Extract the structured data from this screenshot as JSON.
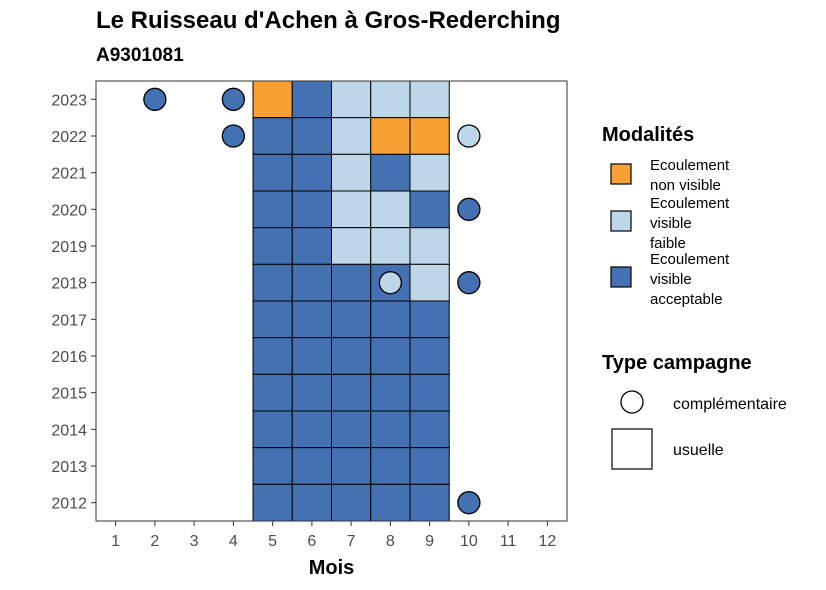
{
  "chart_data": {
    "type": "heatmap",
    "title": "Le Ruisseau d'Achen à Gros-Rederching",
    "subtitle": "A9301081",
    "xlabel": "Mois",
    "ylabel": "",
    "x_ticks": [
      "1",
      "2",
      "3",
      "4",
      "5",
      "6",
      "7",
      "8",
      "9",
      "10",
      "11",
      "12"
    ],
    "y_ticks": [
      "2012",
      "2013",
      "2014",
      "2015",
      "2016",
      "2017",
      "2018",
      "2019",
      "2020",
      "2021",
      "2022",
      "2023"
    ],
    "xlim": [
      0.5,
      12.5
    ],
    "ylim": [
      2011.5,
      2023.5
    ],
    "grid": false,
    "legend_position": "right",
    "categories": {
      "nv": {
        "label": "Ecoulement non visible",
        "color": "#f7a135"
      },
      "vf": {
        "label": "Ecoulement visible faible",
        "color": "#bed7e8"
      },
      "va": {
        "label": "Ecoulement visible acceptable",
        "color": "#4471b2"
      }
    },
    "legend_modalites": {
      "title": "Modalités",
      "items": [
        {
          "key": "nv",
          "lines": [
            "Ecoulement",
            "non visible"
          ]
        },
        {
          "key": "vf",
          "lines": [
            "Ecoulement",
            "visible",
            "faible"
          ]
        },
        {
          "key": "va",
          "lines": [
            "Ecoulement",
            "visible",
            "acceptable"
          ]
        }
      ]
    },
    "legend_type": {
      "title": "Type campagne",
      "items": [
        {
          "shape": "circle",
          "label": "complémentaire"
        },
        {
          "shape": "square",
          "label": "usuelle"
        }
      ]
    },
    "points": [
      {
        "year": 2023,
        "month": 2,
        "cat": "va",
        "type": "complementaire"
      },
      {
        "year": 2023,
        "month": 4,
        "cat": "va",
        "type": "complementaire"
      },
      {
        "year": 2023,
        "month": 5,
        "cat": "nv",
        "type": "usuelle"
      },
      {
        "year": 2023,
        "month": 6,
        "cat": "va",
        "type": "usuelle"
      },
      {
        "year": 2023,
        "month": 7,
        "cat": "vf",
        "type": "usuelle"
      },
      {
        "year": 2023,
        "month": 8,
        "cat": "vf",
        "type": "usuelle"
      },
      {
        "year": 2023,
        "month": 9,
        "cat": "vf",
        "type": "usuelle"
      },
      {
        "year": 2022,
        "month": 4,
        "cat": "va",
        "type": "complementaire"
      },
      {
        "year": 2022,
        "month": 5,
        "cat": "va",
        "type": "usuelle"
      },
      {
        "year": 2022,
        "month": 6,
        "cat": "va",
        "type": "usuelle"
      },
      {
        "year": 2022,
        "month": 7,
        "cat": "vf",
        "type": "usuelle"
      },
      {
        "year": 2022,
        "month": 8,
        "cat": "nv",
        "type": "usuelle"
      },
      {
        "year": 2022,
        "month": 9,
        "cat": "nv",
        "type": "usuelle"
      },
      {
        "year": 2022,
        "month": 10,
        "cat": "vf",
        "type": "complementaire"
      },
      {
        "year": 2021,
        "month": 5,
        "cat": "va",
        "type": "usuelle"
      },
      {
        "year": 2021,
        "month": 6,
        "cat": "va",
        "type": "usuelle"
      },
      {
        "year": 2021,
        "month": 7,
        "cat": "vf",
        "type": "usuelle"
      },
      {
        "year": 2021,
        "month": 8,
        "cat": "va",
        "type": "usuelle"
      },
      {
        "year": 2021,
        "month": 9,
        "cat": "vf",
        "type": "usuelle"
      },
      {
        "year": 2020,
        "month": 5,
        "cat": "va",
        "type": "usuelle"
      },
      {
        "year": 2020,
        "month": 6,
        "cat": "va",
        "type": "usuelle"
      },
      {
        "year": 2020,
        "month": 7,
        "cat": "vf",
        "type": "usuelle"
      },
      {
        "year": 2020,
        "month": 8,
        "cat": "vf",
        "type": "usuelle"
      },
      {
        "year": 2020,
        "month": 9,
        "cat": "va",
        "type": "usuelle"
      },
      {
        "year": 2020,
        "month": 10,
        "cat": "va",
        "type": "complementaire"
      },
      {
        "year": 2019,
        "month": 5,
        "cat": "va",
        "type": "usuelle"
      },
      {
        "year": 2019,
        "month": 6,
        "cat": "va",
        "type": "usuelle"
      },
      {
        "year": 2019,
        "month": 7,
        "cat": "vf",
        "type": "usuelle"
      },
      {
        "year": 2019,
        "month": 8,
        "cat": "vf",
        "type": "usuelle"
      },
      {
        "year": 2019,
        "month": 9,
        "cat": "vf",
        "type": "usuelle"
      },
      {
        "year": 2018,
        "month": 5,
        "cat": "va",
        "type": "usuelle"
      },
      {
        "year": 2018,
        "month": 6,
        "cat": "va",
        "type": "usuelle"
      },
      {
        "year": 2018,
        "month": 7,
        "cat": "va",
        "type": "usuelle"
      },
      {
        "year": 2018,
        "month": 8,
        "cat": "va",
        "type": "usuelle"
      },
      {
        "year": 2018,
        "month": 8,
        "cat": "vf",
        "type": "complementaire"
      },
      {
        "year": 2018,
        "month": 9,
        "cat": "vf",
        "type": "usuelle"
      },
      {
        "year": 2018,
        "month": 10,
        "cat": "va",
        "type": "complementaire"
      },
      {
        "year": 2017,
        "month": 5,
        "cat": "va",
        "type": "usuelle"
      },
      {
        "year": 2017,
        "month": 6,
        "cat": "va",
        "type": "usuelle"
      },
      {
        "year": 2017,
        "month": 7,
        "cat": "va",
        "type": "usuelle"
      },
      {
        "year": 2017,
        "month": 8,
        "cat": "va",
        "type": "usuelle"
      },
      {
        "year": 2017,
        "month": 9,
        "cat": "va",
        "type": "usuelle"
      },
      {
        "year": 2016,
        "month": 5,
        "cat": "va",
        "type": "usuelle"
      },
      {
        "year": 2016,
        "month": 6,
        "cat": "va",
        "type": "usuelle"
      },
      {
        "year": 2016,
        "month": 7,
        "cat": "va",
        "type": "usuelle"
      },
      {
        "year": 2016,
        "month": 8,
        "cat": "va",
        "type": "usuelle"
      },
      {
        "year": 2016,
        "month": 9,
        "cat": "va",
        "type": "usuelle"
      },
      {
        "year": 2015,
        "month": 5,
        "cat": "va",
        "type": "usuelle"
      },
      {
        "year": 2015,
        "month": 6,
        "cat": "va",
        "type": "usuelle"
      },
      {
        "year": 2015,
        "month": 7,
        "cat": "va",
        "type": "usuelle"
      },
      {
        "year": 2015,
        "month": 8,
        "cat": "va",
        "type": "usuelle"
      },
      {
        "year": 2015,
        "month": 9,
        "cat": "va",
        "type": "usuelle"
      },
      {
        "year": 2014,
        "month": 5,
        "cat": "va",
        "type": "usuelle"
      },
      {
        "year": 2014,
        "month": 6,
        "cat": "va",
        "type": "usuelle"
      },
      {
        "year": 2014,
        "month": 7,
        "cat": "va",
        "type": "usuelle"
      },
      {
        "year": 2014,
        "month": 8,
        "cat": "va",
        "type": "usuelle"
      },
      {
        "year": 2014,
        "month": 9,
        "cat": "va",
        "type": "usuelle"
      },
      {
        "year": 2013,
        "month": 5,
        "cat": "va",
        "type": "usuelle"
      },
      {
        "year": 2013,
        "month": 6,
        "cat": "va",
        "type": "usuelle"
      },
      {
        "year": 2013,
        "month": 7,
        "cat": "va",
        "type": "usuelle"
      },
      {
        "year": 2013,
        "month": 8,
        "cat": "va",
        "type": "usuelle"
      },
      {
        "year": 2013,
        "month": 9,
        "cat": "va",
        "type": "usuelle"
      },
      {
        "year": 2012,
        "month": 5,
        "cat": "va",
        "type": "usuelle"
      },
      {
        "year": 2012,
        "month": 6,
        "cat": "va",
        "type": "usuelle"
      },
      {
        "year": 2012,
        "month": 7,
        "cat": "va",
        "type": "usuelle"
      },
      {
        "year": 2012,
        "month": 8,
        "cat": "va",
        "type": "usuelle"
      },
      {
        "year": 2012,
        "month": 9,
        "cat": "va",
        "type": "usuelle"
      },
      {
        "year": 2012,
        "month": 10,
        "cat": "va",
        "type": "complementaire"
      }
    ]
  }
}
